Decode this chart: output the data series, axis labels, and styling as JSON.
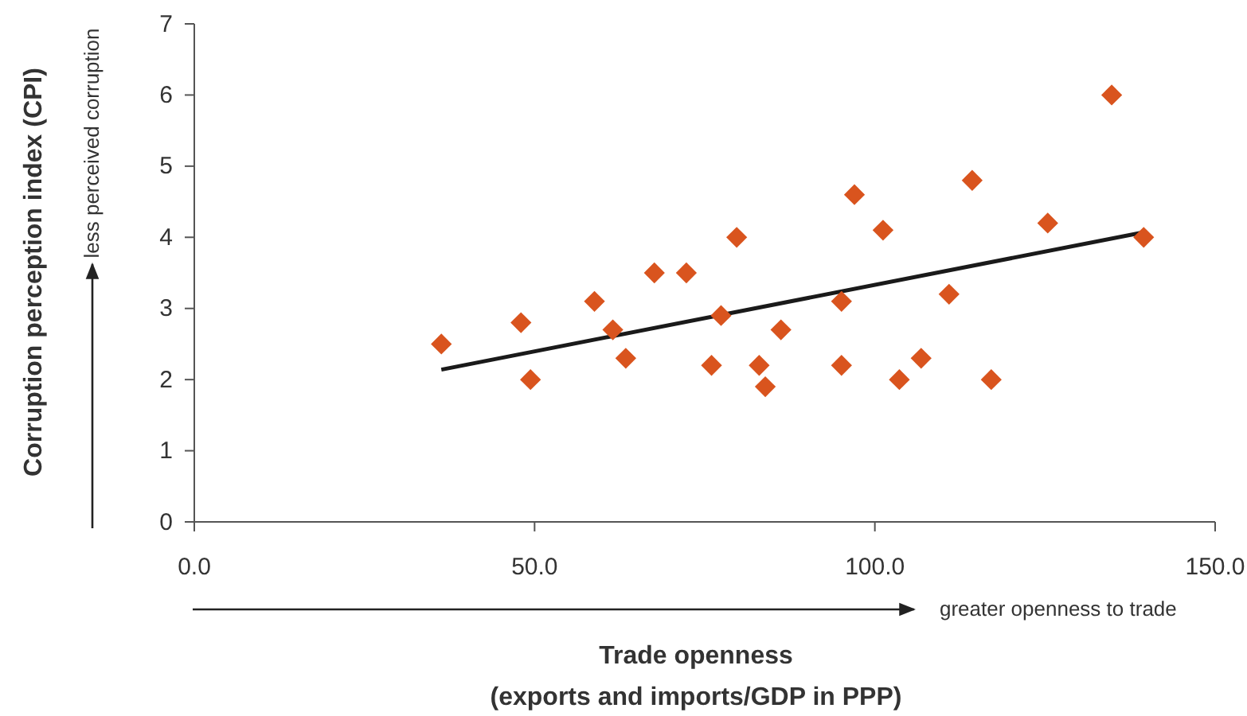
{
  "chart_data": {
    "type": "scatter",
    "xlabel": "Trade openness\n(exports and imports/GDP in PPP)",
    "ylabel": "Corruption perception index (CPI)",
    "annotations": [
      "less perceived corruption",
      "greater openness to trade"
    ],
    "xlim": [
      0,
      150
    ],
    "xticks": [
      {
        "value": 0,
        "label": "0.0"
      },
      {
        "value": 50,
        "label": "50.0"
      },
      {
        "value": 100,
        "label": "100.0"
      },
      {
        "value": 150,
        "label": "150.0"
      }
    ],
    "ylim": [
      0,
      7
    ],
    "yticks": [
      0,
      1,
      2,
      3,
      4,
      5,
      6,
      7
    ],
    "grid": false,
    "series": [
      {
        "marker": "diamond",
        "color": "#d9541e",
        "x": [
          36.3,
          48.0,
          49.4,
          58.8,
          61.5,
          63.4,
          67.6,
          72.3,
          79.7,
          77.4,
          76.0,
          83.0,
          83.9,
          86.2,
          97.0,
          101.2,
          95.1,
          95.1,
          103.6,
          106.8,
          110.9,
          114.3,
          117.1,
          125.4,
          134.8,
          139.5
        ],
        "values": [
          2.5,
          2.8,
          2.0,
          3.1,
          2.7,
          2.3,
          3.5,
          3.5,
          4.0,
          2.9,
          2.2,
          2.2,
          1.9,
          2.7,
          4.6,
          4.1,
          3.1,
          2.2,
          2.0,
          2.3,
          3.2,
          4.8,
          2.0,
          4.2,
          6.0,
          4.0
        ]
      },
      {
        "type": "line",
        "color": "#1a1a1a",
        "line_style": "solid",
        "x": [
          36.3,
          139.5
        ],
        "values": [
          2.14,
          4.07
        ]
      }
    ]
  }
}
